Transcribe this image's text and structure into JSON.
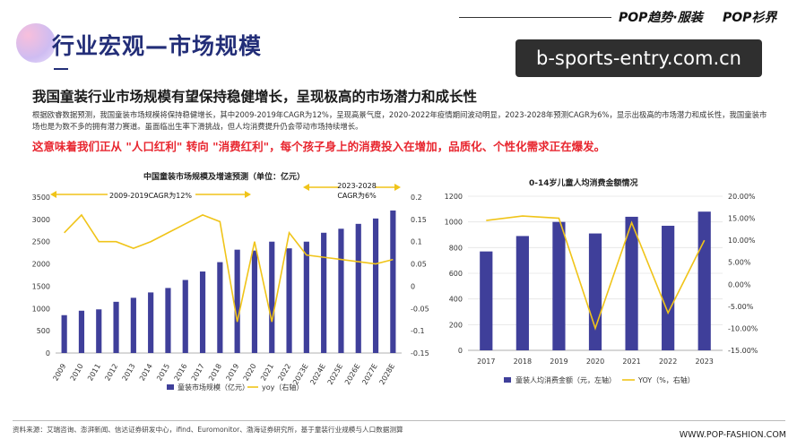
{
  "header": {
    "title": "行业宏观—市场规模",
    "brand1": "POP趋势·服装",
    "brand2": "POP衫界",
    "watermark": "b-sports-entry.com.cn"
  },
  "content": {
    "heading": "我国童装行业市场规模有望保持稳健增长，呈现极高的市场潜力和成长性",
    "body": "根据欧睿数据预测，我国童装市场规模将保持稳健增长，其中2009-2019年CAGR为12%，呈现高景气度，2020-2022年疫情期间波动明显，2023-2028年预测CAGR为6%，显示出极高的市场潜力和成长性，我国童装市场也是为数不多的拥有潜力赛道。虽面临出生率下滑挑战，但人均消费提升仍会带动市场持续增长。",
    "highlight": "这意味着我们正从 \"人口红利\" 转向 \"消费红利\"，每个孩子身上的消费投入在增加，品质化、个性化需求正在爆发。"
  },
  "footer": {
    "source": "资料来源：艾瑞咨询、澎湃新闻、信达证券研发中心，ifind、Euromonitor、渤海证券研究所，基于童装行业规模与人口数据测算",
    "site": "WWW.POP-FASHION.COM"
  },
  "colors": {
    "bar": "#3f3f9a",
    "line": "#f0c419",
    "title": "#232e78",
    "highlight": "#e8262f"
  },
  "chart_data": [
    {
      "type": "bar",
      "title": "中国童装市场规模及增速预测（单位：亿元）",
      "categories": [
        "2009",
        "2010",
        "2011",
        "2012",
        "2013",
        "2014",
        "2015",
        "2016",
        "2017",
        "2018",
        "2019",
        "2020",
        "2021",
        "2022",
        "2023E",
        "2024E",
        "2025E",
        "2026E",
        "2027E",
        "2028E"
      ],
      "series": [
        {
          "name": "童装市场规模（亿元）",
          "axis": "left",
          "kind": "bar",
          "values": [
            850,
            950,
            980,
            1150,
            1240,
            1360,
            1460,
            1640,
            1830,
            2040,
            2320,
            2300,
            2500,
            2350,
            2500,
            2700,
            2790,
            2900,
            3020,
            3200
          ]
        },
        {
          "name": "yoy（右轴）",
          "axis": "right",
          "kind": "line",
          "values": [
            0.12,
            0.16,
            0.1,
            0.1,
            0.085,
            0.1,
            0.12,
            0.14,
            0.16,
            0.145,
            -0.08,
            0.1,
            -0.08,
            0.12,
            0.07,
            0.065,
            0.06,
            0.055,
            0.05,
            0.06
          ]
        }
      ],
      "ylim_left": [
        0,
        3500
      ],
      "ylim_right": [
        -0.15,
        0.2
      ],
      "yticks_left": [
        "0",
        "500",
        "1000",
        "1500",
        "2000",
        "2500",
        "3000",
        "3500"
      ],
      "yticks_right": [
        "-0.15",
        "-0.1",
        "-0.05",
        "0",
        "0.05",
        "0.1",
        "0.15",
        "0.2"
      ],
      "annotations": [
        "2009-2019CAGR为12%",
        "2023-2028",
        "CAGR为6%"
      ],
      "legend": [
        "童装市场规模（亿元）",
        "yoy（右轴）"
      ],
      "legend_position": "bottom",
      "grid": false
    },
    {
      "type": "bar",
      "title": "0-14岁儿童人均消费金额情况",
      "categories": [
        "2017",
        "2018",
        "2019",
        "2020",
        "2021",
        "2022",
        "2023"
      ],
      "series": [
        {
          "name": "童装人均消费金额（元，左轴）",
          "axis": "left",
          "kind": "bar",
          "values": [
            770,
            890,
            1000,
            910,
            1040,
            970,
            1080
          ]
        },
        {
          "name": "YOY（%，右轴）",
          "axis": "right",
          "kind": "line",
          "values": [
            14.5,
            15.5,
            15.0,
            -10.0,
            14.0,
            -6.5,
            10.0
          ]
        }
      ],
      "ylim_left": [
        0,
        1200
      ],
      "ylim_right": [
        -15,
        20
      ],
      "yticks_left": [
        "0",
        "200",
        "400",
        "600",
        "800",
        "1000",
        "1200"
      ],
      "yticks_right": [
        "-15.00%",
        "-10.00%",
        "-5.00%",
        "0.00%",
        "5.00%",
        "10.00%",
        "15.00%",
        "20.00%"
      ],
      "legend": [
        "童装人均消费金额（元，左轴）",
        "YOY（%，右轴）"
      ],
      "legend_position": "bottom",
      "grid": true
    }
  ]
}
